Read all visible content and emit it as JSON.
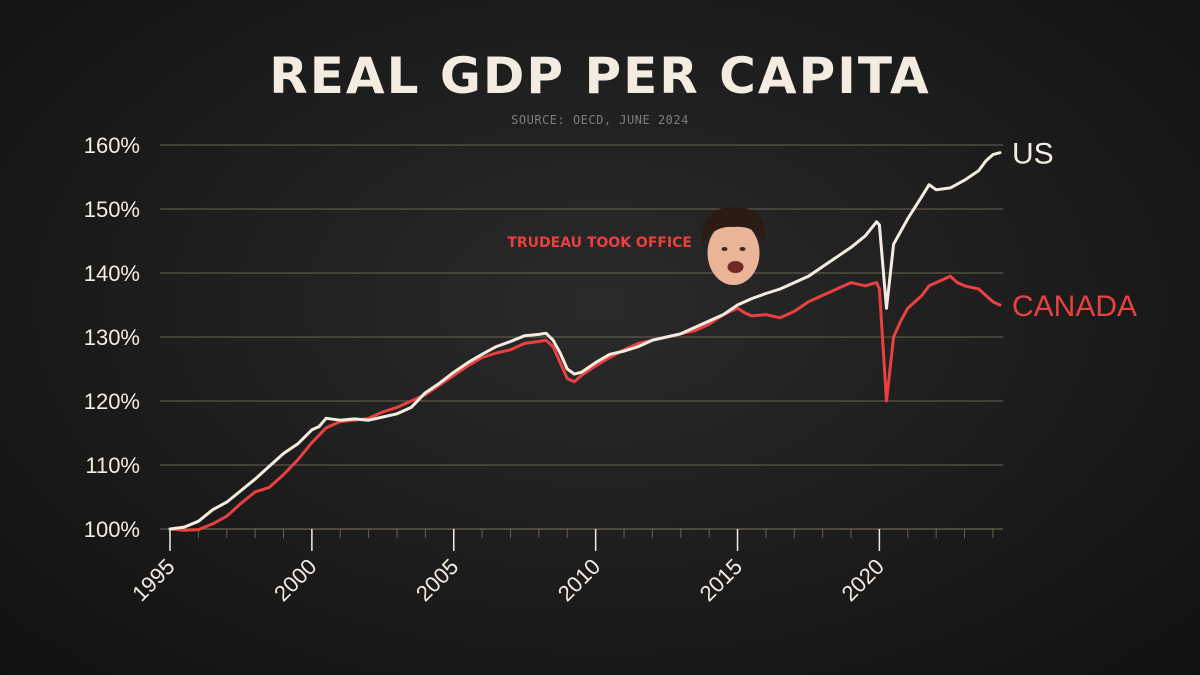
{
  "colors": {
    "us": "#f4ece0",
    "canada": "#e8413f",
    "text": "#f4ece0",
    "subtitle": "#7d7d7d",
    "grid": "#6b6353",
    "annotation": "#e8413f"
  },
  "chart_data": {
    "type": "line",
    "title": "REAL GDP PER CAPITA",
    "subtitle": "SOURCE: OECD, JUNE 2024",
    "xlim": [
      1995,
      2024.25
    ],
    "ylim": [
      100,
      160
    ],
    "y_ticks": [
      "100%",
      "110%",
      "120%",
      "130%",
      "140%",
      "150%",
      "160%"
    ],
    "y_tick_values": [
      100,
      110,
      120,
      130,
      140,
      150,
      160
    ],
    "x_ticks": [
      "1995",
      "2000",
      "2005",
      "2010",
      "2015",
      "2020"
    ],
    "x_tick_values": [
      1995,
      2000,
      2005,
      2010,
      2015,
      2020
    ],
    "grid": "horizontal",
    "series": [
      {
        "name": "US",
        "key": "us",
        "points": [
          [
            1995.0,
            100.0
          ],
          [
            1995.5,
            100.3
          ],
          [
            1996.0,
            101.2
          ],
          [
            1996.5,
            103.0
          ],
          [
            1997.0,
            104.2
          ],
          [
            1997.5,
            106.0
          ],
          [
            1998.0,
            107.8
          ],
          [
            1998.5,
            109.8
          ],
          [
            1999.0,
            111.8
          ],
          [
            1999.5,
            113.3
          ],
          [
            2000.0,
            115.5
          ],
          [
            2000.25,
            116.0
          ],
          [
            2000.5,
            117.3
          ],
          [
            2001.0,
            117.0
          ],
          [
            2001.5,
            117.2
          ],
          [
            2002.0,
            117.0
          ],
          [
            2002.5,
            117.5
          ],
          [
            2003.0,
            118.0
          ],
          [
            2003.5,
            119.0
          ],
          [
            2004.0,
            121.3
          ],
          [
            2004.5,
            122.8
          ],
          [
            2005.0,
            124.5
          ],
          [
            2005.5,
            126.0
          ],
          [
            2006.0,
            127.3
          ],
          [
            2006.5,
            128.5
          ],
          [
            2007.0,
            129.3
          ],
          [
            2007.5,
            130.2
          ],
          [
            2008.0,
            130.4
          ],
          [
            2008.25,
            130.6
          ],
          [
            2008.5,
            129.5
          ],
          [
            2008.75,
            127.5
          ],
          [
            2009.0,
            125.0
          ],
          [
            2009.25,
            124.2
          ],
          [
            2009.5,
            124.5
          ],
          [
            2010.0,
            126.0
          ],
          [
            2010.5,
            127.3
          ],
          [
            2011.0,
            127.8
          ],
          [
            2011.5,
            128.5
          ],
          [
            2012.0,
            129.5
          ],
          [
            2012.5,
            130.0
          ],
          [
            2013.0,
            130.5
          ],
          [
            2013.5,
            131.5
          ],
          [
            2014.0,
            132.5
          ],
          [
            2014.5,
            133.5
          ],
          [
            2015.0,
            135.0
          ],
          [
            2015.5,
            136.0
          ],
          [
            2016.0,
            136.8
          ],
          [
            2016.5,
            137.5
          ],
          [
            2017.0,
            138.5
          ],
          [
            2017.5,
            139.5
          ],
          [
            2018.0,
            141.0
          ],
          [
            2018.5,
            142.5
          ],
          [
            2019.0,
            144.0
          ],
          [
            2019.5,
            145.8
          ],
          [
            2019.9,
            148.0
          ],
          [
            2020.0,
            147.5
          ],
          [
            2020.25,
            134.5
          ],
          [
            2020.5,
            144.5
          ],
          [
            2020.75,
            146.5
          ],
          [
            2021.0,
            148.5
          ],
          [
            2021.5,
            152.0
          ],
          [
            2021.75,
            153.8
          ],
          [
            2022.0,
            153.0
          ],
          [
            2022.5,
            153.3
          ],
          [
            2023.0,
            154.5
          ],
          [
            2023.5,
            156.0
          ],
          [
            2023.75,
            157.5
          ],
          [
            2024.0,
            158.5
          ],
          [
            2024.25,
            158.8
          ]
        ]
      },
      {
        "name": "CANADA",
        "key": "canada",
        "points": [
          [
            1995.0,
            100.0
          ],
          [
            1995.5,
            99.8
          ],
          [
            1996.0,
            99.9
          ],
          [
            1996.5,
            100.8
          ],
          [
            1997.0,
            102.0
          ],
          [
            1997.5,
            104.0
          ],
          [
            1998.0,
            105.8
          ],
          [
            1998.5,
            106.5
          ],
          [
            1999.0,
            108.5
          ],
          [
            1999.5,
            110.8
          ],
          [
            2000.0,
            113.5
          ],
          [
            2000.5,
            115.8
          ],
          [
            2001.0,
            116.8
          ],
          [
            2001.5,
            117.0
          ],
          [
            2002.0,
            117.3
          ],
          [
            2002.5,
            118.3
          ],
          [
            2003.0,
            119.0
          ],
          [
            2003.5,
            120.0
          ],
          [
            2004.0,
            121.0
          ],
          [
            2004.5,
            122.5
          ],
          [
            2005.0,
            124.0
          ],
          [
            2005.5,
            125.5
          ],
          [
            2006.0,
            126.8
          ],
          [
            2006.5,
            127.5
          ],
          [
            2007.0,
            128.0
          ],
          [
            2007.5,
            129.0
          ],
          [
            2008.0,
            129.3
          ],
          [
            2008.25,
            129.5
          ],
          [
            2008.5,
            128.5
          ],
          [
            2008.75,
            126.0
          ],
          [
            2009.0,
            123.5
          ],
          [
            2009.25,
            123.0
          ],
          [
            2009.5,
            124.0
          ],
          [
            2010.0,
            125.5
          ],
          [
            2010.5,
            126.8
          ],
          [
            2011.0,
            128.0
          ],
          [
            2011.5,
            129.0
          ],
          [
            2012.0,
            129.5
          ],
          [
            2012.5,
            130.0
          ],
          [
            2013.0,
            130.5
          ],
          [
            2013.5,
            131.0
          ],
          [
            2014.0,
            132.0
          ],
          [
            2014.5,
            133.5
          ],
          [
            2015.0,
            134.5
          ],
          [
            2015.25,
            133.8
          ],
          [
            2015.5,
            133.3
          ],
          [
            2016.0,
            133.5
          ],
          [
            2016.5,
            133.0
          ],
          [
            2017.0,
            134.0
          ],
          [
            2017.5,
            135.5
          ],
          [
            2018.0,
            136.5
          ],
          [
            2018.5,
            137.5
          ],
          [
            2019.0,
            138.5
          ],
          [
            2019.5,
            138.0
          ],
          [
            2019.9,
            138.5
          ],
          [
            2020.0,
            137.5
          ],
          [
            2020.25,
            120.0
          ],
          [
            2020.5,
            130.0
          ],
          [
            2020.75,
            132.5
          ],
          [
            2021.0,
            134.5
          ],
          [
            2021.5,
            136.5
          ],
          [
            2021.75,
            138.0
          ],
          [
            2022.0,
            138.5
          ],
          [
            2022.5,
            139.5
          ],
          [
            2022.75,
            138.5
          ],
          [
            2023.0,
            138.0
          ],
          [
            2023.5,
            137.5
          ],
          [
            2024.0,
            135.5
          ],
          [
            2024.25,
            135.0
          ]
        ]
      }
    ],
    "annotation": {
      "text": "TRUDEAU TOOK OFFICE",
      "x": 2015.0,
      "y": 137.5,
      "marker": "portrait-icon"
    }
  }
}
